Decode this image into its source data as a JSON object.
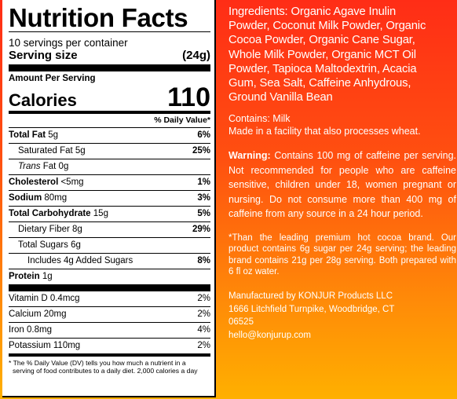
{
  "nutrition": {
    "title": "Nutrition Facts",
    "servings_per_container": "10 servings per container",
    "serving_size_label": "Serving size",
    "serving_size_value": "(24g)",
    "amount_per_serving": "Amount Per Serving",
    "calories_label": "Calories",
    "calories_value": "110",
    "daily_value_header": "% Daily Value*",
    "rows": {
      "total_fat": {
        "label": "Total Fat",
        "amount": "5g",
        "pct": "6%"
      },
      "saturated_fat": {
        "label": "Saturated Fat 5g",
        "pct": "25%"
      },
      "trans_fat": {
        "label_italic": "Trans",
        "label_rest": " Fat 0g"
      },
      "cholesterol": {
        "label": "Cholesterol",
        "amount": "<5mg",
        "pct": "1%"
      },
      "sodium": {
        "label": "Sodium",
        "amount": "80mg",
        "pct": "3%"
      },
      "total_carb": {
        "label": "Total Carbohydrate",
        "amount": "15g",
        "pct": "5%"
      },
      "dietary_fiber": {
        "label": "Dietary Fiber 8g",
        "pct": "29%"
      },
      "total_sugars": {
        "label": "Total Sugars 6g"
      },
      "added_sugars": {
        "label": "Includes 4g Added Sugars",
        "pct": "8%"
      },
      "protein": {
        "label": "Protein",
        "amount": "1g"
      }
    },
    "vitamins": [
      {
        "label": "Vitamin D 0.4mcg",
        "pct": "2%"
      },
      {
        "label": "Calcium 20mg",
        "pct": "2%"
      },
      {
        "label": "Iron 0.8mg",
        "pct": "4%"
      },
      {
        "label": "Potassium 110mg",
        "pct": "2%"
      }
    ],
    "footnote_line1": "* The % Daily Value (DV) tells you how much a nutrient in a",
    "footnote_line2": "serving of food contributes to a daily diet. 2,000 calories a day"
  },
  "info": {
    "ingredients": [
      "Ingredients: Organic Agave Inulin",
      "Powder, Coconut Milk Powder, Organic",
      "Cocoa Powder, Organic Cane Sugar,",
      "Whole Milk Powder, Organic MCT Oil",
      "Powder, Tapioca Maltodextrin, Acacia",
      "Gum, Sea Salt, Caffeine Anhydrous,",
      "Ground Vanilla Bean"
    ],
    "contains": "Contains: Milk",
    "facility": "Made in a facility that also processes wheat.",
    "warning_label": "Warning:",
    "warning_text": " Contains 100 mg of caffeine per serving. Not recommended for people who are caffeine sensitive, children under 18, women pregnant or nursing. Do not consume more than 400 mg of caffeine from any source in a 24 hour period.",
    "comparison": "*Than the leading premium hot cocoa brand. Our product contains 6g sugar per 24g serving; the leading brand contains 21g per 28g serving. Both prepared with 6 fl oz water.",
    "manufacturer": "Manufactured by KONJUR Products LLC",
    "address_line1": "1666 Litchfield Turnpike, Woodbridge, CT",
    "address_line2": "06525",
    "email": "hello@konjurup.com"
  },
  "colors": {
    "gradient_top": "#ff2d16",
    "gradient_bottom": "#ffb000",
    "panel_bg": "#ffffff",
    "text_light": "#ffffff"
  }
}
